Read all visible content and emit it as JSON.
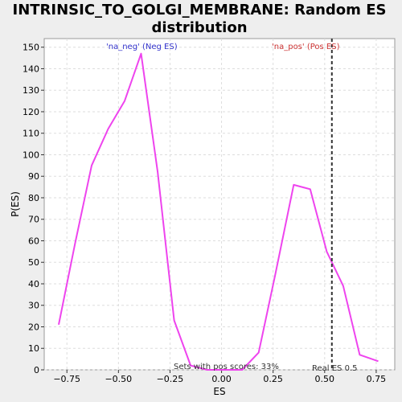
{
  "chart_data": {
    "type": "line",
    "title_lines": [
      "INTRINSIC_TO_GOLGI_MEMBRANE: Random ES",
      "distribution"
    ],
    "xlabel": "ES",
    "ylabel": "P(ES)",
    "xlim": [
      -0.86,
      0.84
    ],
    "ylim": [
      0,
      154
    ],
    "x_ticks": [
      -0.75,
      -0.5,
      -0.25,
      0.0,
      0.25,
      0.5,
      0.75
    ],
    "x_tick_labels": [
      "−0.75",
      "−0.50",
      "−0.25",
      "0.00",
      "0.25",
      "0.50",
      "0.75"
    ],
    "y_ticks": [
      0,
      10,
      20,
      30,
      40,
      50,
      60,
      70,
      80,
      90,
      100,
      110,
      120,
      130,
      140,
      150
    ],
    "y_tick_labels": [
      "0",
      "10",
      "20",
      "30",
      "40",
      "50",
      "60",
      "70",
      "80",
      "90",
      "100",
      "110",
      "120",
      "130",
      "140",
      "150"
    ],
    "grid": true,
    "series": [
      {
        "color": "#ee44ee",
        "x": [
          -0.79,
          -0.71,
          -0.63,
          -0.55,
          -0.47,
          -0.39,
          -0.31,
          -0.23,
          -0.15,
          -0.07,
          0.02,
          0.1,
          0.18,
          0.26,
          0.35,
          0.43,
          0.51,
          0.59,
          0.67,
          0.76
        ],
        "y": [
          21,
          59,
          95,
          112,
          125,
          147,
          92,
          23,
          2,
          0,
          0,
          0,
          8,
          44,
          86,
          84,
          55,
          39,
          7,
          4
        ]
      }
    ],
    "real_es": {
      "x": 0.535,
      "color": "#333333",
      "label": "Real ES 0.5"
    },
    "annotations": [
      {
        "text": "'na_neg' (Neg ES)",
        "color": "#3333cc"
      },
      {
        "text": "'na_pos' (Pos ES)",
        "color": "#cc3333"
      },
      {
        "text": "Sets with pos scores: 33%",
        "color": "#333333"
      }
    ]
  }
}
